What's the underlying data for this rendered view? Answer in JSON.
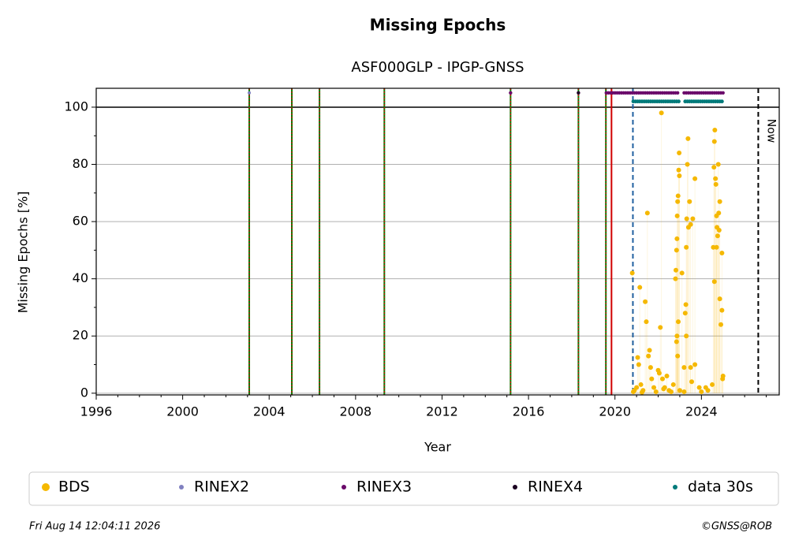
{
  "chart_data": {
    "type": "scatter",
    "title": "Missing Epochs",
    "subtitle": "ASF000GLP - IPGP-GNSS",
    "x_label": "Year",
    "y_label": "Missing Epochs [%]",
    "xlim": [
      1996,
      2027.6
    ],
    "ylim": [
      -0.6,
      106.6
    ],
    "xticks": [
      1996,
      2000,
      2004,
      2008,
      2012,
      2016,
      2020,
      2024
    ],
    "xminor": [
      1997,
      1998,
      1999,
      2001,
      2002,
      2003,
      2005,
      2006,
      2007,
      2009,
      2010,
      2011,
      2013,
      2014,
      2015,
      2017,
      2018,
      2019,
      2021,
      2022,
      2023,
      2025,
      2026,
      2027
    ],
    "yticks": [
      0,
      20,
      40,
      60,
      80,
      100
    ],
    "yminor": [
      10,
      30,
      50,
      70,
      90
    ],
    "grid": true,
    "hlines": [
      {
        "y": 100,
        "color": "#000000"
      }
    ],
    "vlines": [
      {
        "x": 2003.08,
        "color": "#008000",
        "overlay": "#d00000"
      },
      {
        "x": 2005.05,
        "color": "#008000",
        "overlay": "#d00000"
      },
      {
        "x": 2006.33,
        "color": "#008000",
        "overlay": "#d00000"
      },
      {
        "x": 2009.33,
        "color": "#008000",
        "overlay": "#d00000"
      },
      {
        "x": 2015.17,
        "color": "#008000",
        "overlay": "#d00000"
      },
      {
        "x": 2018.31,
        "color": "#008000",
        "overlay": "#d00000"
      },
      {
        "x": 2019.58,
        "color": "#008000",
        "overlay": "#d00000"
      },
      {
        "x": 2019.84,
        "color": "#d00000"
      },
      {
        "x": 2020.83,
        "color": "#1f5fa0",
        "dashed": true
      },
      {
        "x": 2026.63,
        "color": "#000000",
        "dashed": true,
        "label": "Now"
      }
    ],
    "series": [
      {
        "name": "BDS",
        "color": "#f5b800",
        "radius": 3,
        "droplines": true,
        "x": [
          2020.8,
          2020.85,
          2020.9,
          2021.0,
          2021.05,
          2021.1,
          2021.15,
          2021.2,
          2021.3,
          2021.4,
          2021.45,
          2021.5,
          2021.55,
          2021.6,
          2021.65,
          2021.7,
          2021.8,
          2021.9,
          2022.0,
          2022.05,
          2022.1,
          2022.15,
          2022.2,
          2022.3,
          2022.4,
          2022.5,
          2022.6,
          2022.7,
          2022.8,
          2022.82,
          2022.85,
          2022.87,
          2022.88,
          2022.9,
          2022.92,
          2022.95,
          2022.97,
          2022.98,
          2022.85,
          2022.87,
          2022.9,
          2022.93,
          2023.1,
          2023.2,
          2023.25,
          2023.28,
          2023.3,
          2023.32,
          2023.35,
          2023.38,
          2023.4,
          2023.45,
          2023.5,
          2023.6,
          2023.7,
          2023.5,
          2023.55,
          2023.3,
          2023.2,
          2024.3,
          2024.5,
          2024.55,
          2024.58,
          2024.6,
          2024.62,
          2024.65,
          2024.67,
          2024.7,
          2024.72,
          2024.75,
          2024.78,
          2024.8,
          2024.82,
          2024.85,
          2024.6,
          2024.7,
          2024.85,
          2024.9,
          2024.95,
          2024.95,
          2025.0,
          2024.98,
          2023.9,
          2023.7,
          2024.0,
          2024.2,
          2023.0,
          2021.25,
          2022.25
        ],
        "values": [
          42,
          0.5,
          1,
          2,
          12.5,
          10,
          37,
          3,
          1,
          32,
          25,
          63,
          13,
          15,
          9,
          5,
          2,
          0.5,
          8,
          7,
          23,
          98,
          5,
          2,
          6,
          1,
          0.5,
          3,
          40,
          43,
          50,
          54,
          62,
          67,
          69,
          78,
          84,
          76,
          18,
          20,
          13,
          25,
          42,
          0.5,
          28,
          31,
          51,
          61,
          80,
          89,
          58,
          67,
          59,
          61,
          75,
          9,
          4,
          20,
          9,
          1,
          3,
          51,
          79,
          88,
          92,
          75,
          73,
          62,
          58,
          55,
          80,
          63,
          57,
          67,
          39,
          51,
          33,
          24,
          29,
          49,
          6,
          5,
          2,
          10,
          0.5,
          2,
          1,
          0.3,
          1.5
        ]
      },
      {
        "name": "RINEX2",
        "color": "#8080c0",
        "radius": 2,
        "x": [
          2003.08
        ],
        "values": [
          105
        ]
      },
      {
        "name": "RINEX3",
        "color": "#6a0a6a",
        "radius": 2.2,
        "x": [
          2015.17,
          2018.31,
          2019.6,
          2019.7,
          2019.8,
          2019.9,
          2020.0,
          2020.1,
          2020.2,
          2020.3,
          2020.4,
          2020.5,
          2020.6,
          2020.7,
          2020.8,
          2020.9,
          2021.0,
          2021.1,
          2021.2,
          2021.3,
          2021.4,
          2021.5,
          2021.6,
          2021.7,
          2021.8,
          2021.9,
          2022.0,
          2022.1,
          2022.2,
          2022.3,
          2022.4,
          2022.5,
          2022.6,
          2022.7,
          2022.8,
          2022.9,
          2023.2,
          2023.3,
          2023.4,
          2023.5,
          2023.6,
          2023.7,
          2023.8,
          2023.9,
          2024.0,
          2024.1,
          2024.2,
          2024.3,
          2024.4,
          2024.5,
          2024.6,
          2024.7,
          2024.8,
          2024.9,
          2025.0
        ],
        "values": [
          105,
          105,
          105,
          105,
          105,
          105,
          105,
          105,
          105,
          105,
          105,
          105,
          105,
          105,
          105,
          105,
          105,
          105,
          105,
          105,
          105,
          105,
          105,
          105,
          105,
          105,
          105,
          105,
          105,
          105,
          105,
          105,
          105,
          105,
          105,
          105,
          105,
          105,
          105,
          105,
          105,
          105,
          105,
          105,
          105,
          105,
          105,
          105,
          105,
          105,
          105,
          105,
          105,
          105,
          105
        ]
      },
      {
        "name": "RINEX4",
        "color": "#1a0020",
        "radius": 2,
        "x": [
          2018.31
        ],
        "values": [
          105
        ]
      },
      {
        "name": "data 30s",
        "color": "#007a7a",
        "radius": 2.4,
        "x": [
          2020.85,
          2020.95,
          2021.05,
          2021.15,
          2021.25,
          2021.35,
          2021.45,
          2021.55,
          2021.65,
          2021.75,
          2021.85,
          2021.95,
          2022.05,
          2022.15,
          2022.25,
          2022.35,
          2022.45,
          2022.55,
          2022.65,
          2022.75,
          2022.85,
          2022.95,
          2023.25,
          2023.35,
          2023.45,
          2023.55,
          2023.65,
          2023.75,
          2023.85,
          2023.95,
          2024.05,
          2024.15,
          2024.25,
          2024.35,
          2024.45,
          2024.55,
          2024.65,
          2024.75,
          2024.85,
          2024.95
        ],
        "values": [
          102,
          102,
          102,
          102,
          102,
          102,
          102,
          102,
          102,
          102,
          102,
          102,
          102,
          102,
          102,
          102,
          102,
          102,
          102,
          102,
          102,
          102,
          102,
          102,
          102,
          102,
          102,
          102,
          102,
          102,
          102,
          102,
          102,
          102,
          102,
          102,
          102,
          102,
          102,
          102
        ]
      }
    ],
    "footer_left": "Fri Aug 14 12:04:11 2026",
    "footer_right": "©GNSS@ROB"
  }
}
